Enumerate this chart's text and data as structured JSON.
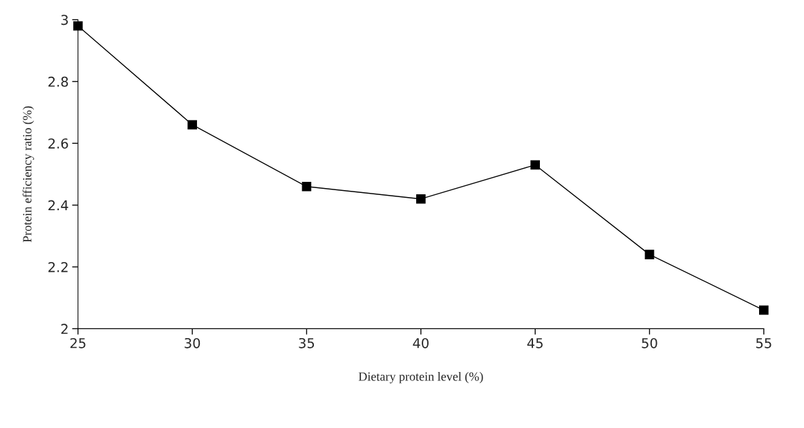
{
  "chart_data": {
    "type": "line",
    "xlabel": "Dietary protein level (%)",
    "ylabel": "Protein efficiency ratio (%)",
    "x": [
      25,
      30,
      35,
      40,
      45,
      50,
      55
    ],
    "series": [
      {
        "color": "#000000",
        "values": [
          2.98,
          2.66,
          2.46,
          2.42,
          2.53,
          2.24,
          2.06
        ]
      }
    ],
    "xlim": [
      25,
      55
    ],
    "xticks": [
      25,
      30,
      35,
      40,
      45,
      50,
      55
    ],
    "ylim": [
      2,
      3
    ],
    "yticks": [
      2,
      2.2,
      2.4,
      2.6,
      2.8,
      3
    ],
    "marker": "square",
    "line_style": "solid",
    "grid": false,
    "legend": false
  }
}
